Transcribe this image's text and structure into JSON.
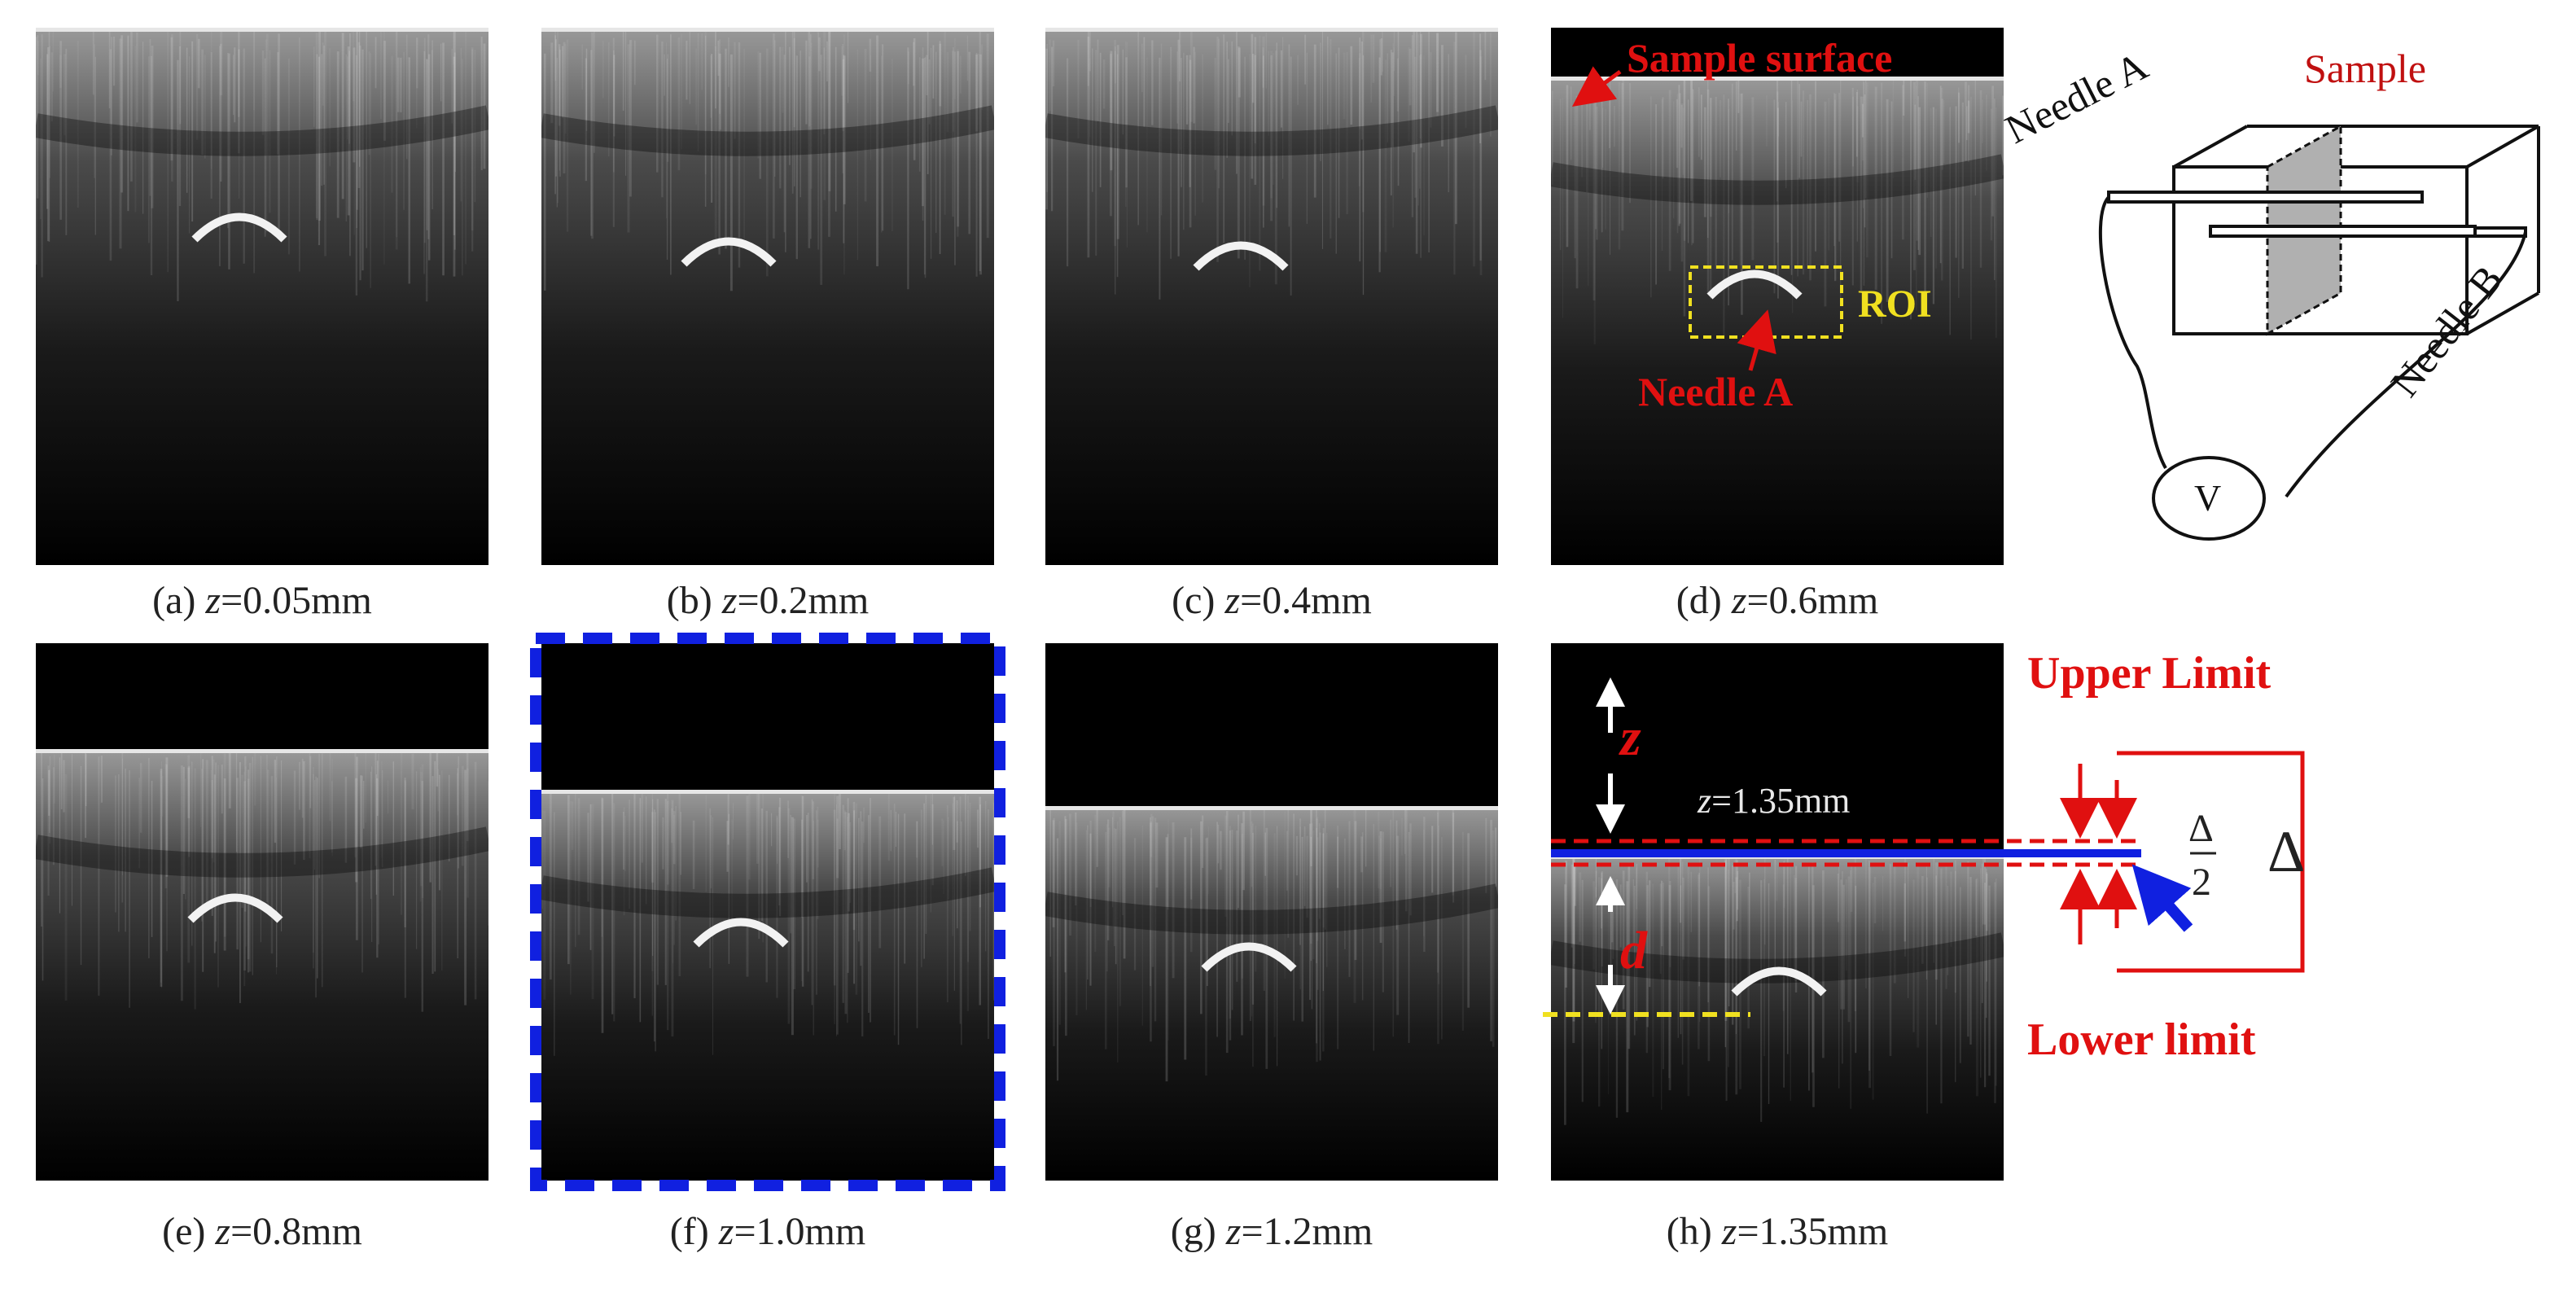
{
  "captions": {
    "a": {
      "prefix": "(a) ",
      "var": "z",
      "value": "=0.05mm"
    },
    "b": {
      "prefix": "(b) ",
      "var": "z",
      "value": "=0.2mm"
    },
    "c": {
      "prefix": "(c) ",
      "var": "z",
      "value": "=0.4mm"
    },
    "d": {
      "prefix": "(d) ",
      "var": "z",
      "value": "=0.6mm"
    },
    "e": {
      "prefix": "(e) ",
      "var": "z",
      "value": "=0.8mm"
    },
    "f": {
      "prefix": "(f) ",
      "var": "z",
      "value": "=1.0mm"
    },
    "g": {
      "prefix": "(g) ",
      "var": "z",
      "value": "=1.2mm"
    },
    "h": {
      "prefix": "(h) ",
      "var": "z",
      "value": "=1.35mm"
    }
  },
  "annotations": {
    "sample_surface": "Sample surface",
    "roi": "ROI",
    "needle_a": "Needle A",
    "upper_limit": "Upper Limit",
    "lower_limit": "Lower limit",
    "z_symbol": "z",
    "d_symbol": "d",
    "z_value_var": "z",
    "z_value": "=1.35mm",
    "delta_half_num": "Δ",
    "delta_half_den": "2",
    "delta": "Δ"
  },
  "schematic": {
    "needle_a": "Needle A",
    "needle_b": "Needle B",
    "sample": "Sample",
    "voltmeter": "V"
  },
  "colors": {
    "annotation_red": "#e01010",
    "roi_yellow": "#f0e020",
    "highlight_blue": "#1020e0",
    "image_background": "#000000"
  }
}
